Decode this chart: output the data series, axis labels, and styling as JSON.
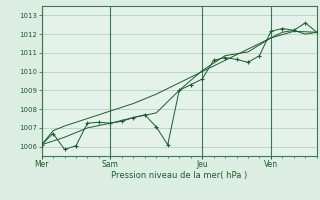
{
  "bg_color": "#dceee4",
  "plot_bg_color": "#e4f2eb",
  "grid_color": "#a8cdb8",
  "line_color": "#1a5c2a",
  "marker_color": "#1a5c2a",
  "ylabel_ticks": [
    1006,
    1007,
    1008,
    1009,
    1010,
    1011,
    1012,
    1013
  ],
  "ylim": [
    1005.5,
    1013.5
  ],
  "xlabel": "Pression niveau de la mer( hPa )",
  "day_labels": [
    "Mer",
    "Sam",
    "Jeu",
    "Ven"
  ],
  "day_positions": [
    0,
    36,
    84,
    120
  ],
  "total_hours": 144,
  "smooth_line": [
    [
      0,
      1006.1
    ],
    [
      6,
      1006.85
    ],
    [
      12,
      1007.1
    ],
    [
      18,
      1007.3
    ],
    [
      24,
      1007.5
    ],
    [
      30,
      1007.7
    ],
    [
      36,
      1007.9
    ],
    [
      42,
      1008.1
    ],
    [
      48,
      1008.3
    ],
    [
      54,
      1008.55
    ],
    [
      60,
      1008.8
    ],
    [
      66,
      1009.1
    ],
    [
      72,
      1009.4
    ],
    [
      78,
      1009.7
    ],
    [
      84,
      1010.0
    ],
    [
      90,
      1010.3
    ],
    [
      96,
      1010.6
    ],
    [
      102,
      1010.9
    ],
    [
      108,
      1011.2
    ],
    [
      114,
      1011.5
    ],
    [
      120,
      1011.8
    ],
    [
      126,
      1012.1
    ],
    [
      132,
      1012.2
    ],
    [
      138,
      1012.0
    ],
    [
      144,
      1012.1
    ]
  ],
  "smooth_line2": [
    [
      0,
      1006.1
    ],
    [
      12,
      1006.5
    ],
    [
      24,
      1007.0
    ],
    [
      36,
      1007.25
    ],
    [
      48,
      1007.55
    ],
    [
      60,
      1007.8
    ],
    [
      72,
      1009.0
    ],
    [
      84,
      1010.05
    ],
    [
      96,
      1010.85
    ],
    [
      108,
      1011.05
    ],
    [
      120,
      1011.8
    ],
    [
      132,
      1012.15
    ],
    [
      144,
      1012.1
    ]
  ],
  "zigzag_line": [
    [
      0,
      1006.1
    ],
    [
      6,
      1006.7
    ],
    [
      12,
      1005.85
    ],
    [
      18,
      1006.05
    ],
    [
      24,
      1007.25
    ],
    [
      30,
      1007.3
    ],
    [
      36,
      1007.25
    ],
    [
      42,
      1007.35
    ],
    [
      48,
      1007.55
    ],
    [
      54,
      1007.7
    ],
    [
      60,
      1007.05
    ],
    [
      66,
      1006.1
    ],
    [
      72,
      1009.0
    ],
    [
      78,
      1009.3
    ],
    [
      84,
      1009.6
    ],
    [
      90,
      1010.6
    ],
    [
      96,
      1010.75
    ],
    [
      102,
      1010.65
    ],
    [
      108,
      1010.5
    ],
    [
      114,
      1010.85
    ],
    [
      120,
      1012.15
    ],
    [
      126,
      1012.3
    ],
    [
      132,
      1012.2
    ],
    [
      138,
      1012.6
    ],
    [
      144,
      1012.1
    ]
  ]
}
